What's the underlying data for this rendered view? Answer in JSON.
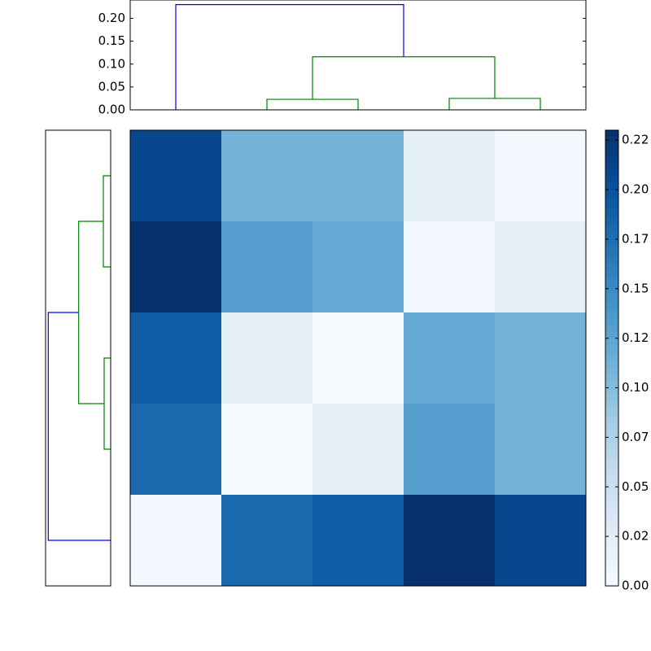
{
  "chart_data": [
    {
      "type": "dendrogram",
      "orientation": "top",
      "xlim": [
        0,
        50
      ],
      "ylim": [
        0,
        0.24
      ],
      "yticks": [
        {
          "value": 0,
          "label": "0.00"
        },
        0.05,
        {
          "value": 0.1,
          "label": "0.10"
        },
        0.15,
        {
          "value": 0.2,
          "label": "0.20"
        }
      ],
      "links": [
        {
          "color": "#008000",
          "icoord": [
            15,
            15,
            25,
            25
          ],
          "dcoord": [
            0,
            0.023,
            0.023,
            0
          ]
        },
        {
          "color": "#008000",
          "icoord": [
            35,
            35,
            45,
            45
          ],
          "dcoord": [
            0,
            0.025,
            0.025,
            0
          ]
        },
        {
          "color": "#008000",
          "icoord": [
            20,
            20,
            40,
            40
          ],
          "dcoord": [
            0.023,
            0.116,
            0.116,
            0.025
          ]
        },
        {
          "color": "#0000ff",
          "icoord": [
            5,
            5,
            30,
            30
          ],
          "dcoord": [
            0,
            0.23,
            0.23,
            0.116
          ]
        }
      ]
    },
    {
      "type": "dendrogram",
      "orientation": "left",
      "xlim": [
        0.24,
        0
      ],
      "ylim": [
        0,
        50
      ],
      "links": [
        {
          "color": "#008000",
          "icoord": [
            5,
            5,
            15,
            15
          ],
          "dcoord": [
            0,
            0.027,
            0.027,
            0
          ]
        },
        {
          "color": "#008000",
          "icoord": [
            25,
            25,
            35,
            35
          ],
          "dcoord": [
            0,
            0.024,
            0.024,
            0
          ]
        },
        {
          "color": "#008000",
          "icoord": [
            10,
            10,
            30,
            30
          ],
          "dcoord": [
            0.027,
            0.118,
            0.118,
            0.024
          ]
        },
        {
          "color": "#0000ff",
          "icoord": [
            20,
            20,
            45,
            45
          ],
          "dcoord": [
            0.118,
            0.23,
            0.23,
            0
          ]
        }
      ]
    },
    {
      "type": "heatmap",
      "cmap": "Blues",
      "zlim": [
        0,
        0.23
      ],
      "values": [
        [
          0.21,
          0.11,
          0.11,
          0.02,
          0.005
        ],
        [
          0.23,
          0.13,
          0.12,
          0.005,
          0.02
        ],
        [
          0.19,
          0.02,
          0,
          0.12,
          0.11
        ],
        [
          0.18,
          0.003,
          0.02,
          0.13,
          0.11
        ],
        [
          0.005,
          0.18,
          0.19,
          0.23,
          0.21
        ]
      ],
      "colorbar_ticks": [
        {
          "value": 0,
          "label": "0.00"
        },
        {
          "value": 0.025,
          "label": "0.02"
        },
        0.05,
        {
          "value": 0.075,
          "label": "0.07"
        },
        {
          "value": 0.1,
          "label": "0.10"
        },
        {
          "value": 0.125,
          "label": "0.12"
        },
        0.15,
        {
          "value": 0.175,
          "label": "0.17"
        },
        {
          "value": 0.2,
          "label": "0.20"
        },
        {
          "value": 0.225,
          "label": "0.22"
        }
      ]
    }
  ]
}
